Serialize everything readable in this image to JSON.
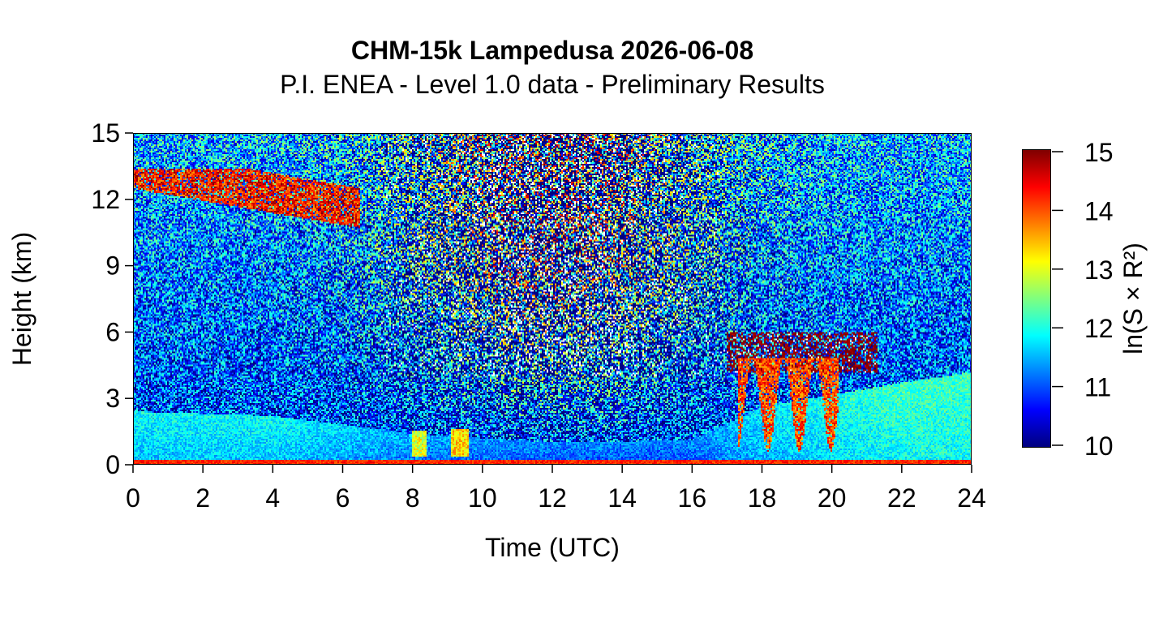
{
  "chart_data": {
    "type": "heatmap",
    "title": "CHM-15k Lampedusa 2026-06-08",
    "subtitle": "P.I. ENEA - Level 1.0 data - Preliminary Results",
    "xlabel": "Time (UTC)",
    "ylabel": "Height (km)",
    "xlim": [
      0,
      24
    ],
    "ylim": [
      0,
      15
    ],
    "x_ticks": [
      0,
      2,
      4,
      6,
      8,
      10,
      12,
      14,
      16,
      18,
      20,
      22,
      24
    ],
    "y_ticks": [
      0,
      3,
      6,
      9,
      12,
      15
    ],
    "colorbar": {
      "label": "ln(S × R²)",
      "range": [
        10,
        15
      ],
      "ticks": [
        10,
        11,
        12,
        13,
        14,
        15
      ],
      "colors": [
        "#00007f",
        "#0000ff",
        "#007fff",
        "#00ffff",
        "#7fff7f",
        "#ffff00",
        "#ff7f00",
        "#ff0000",
        "#7f0000"
      ]
    },
    "features": {
      "surface_layer": {
        "top_km": 0.2,
        "value": 14.2
      },
      "boundary_layer": [
        {
          "time_h": 0,
          "top_km": 2.4,
          "value": 11.9
        },
        {
          "time_h": 4,
          "top_km": 2.2,
          "value": 11.9
        },
        {
          "time_h": 8,
          "top_km": 1.4,
          "value": 11.5
        },
        {
          "time_h": 12,
          "top_km": 1.0,
          "value": 11.3
        },
        {
          "time_h": 16,
          "top_km": 1.1,
          "value": 11.3
        },
        {
          "time_h": 18,
          "top_km": 2.6,
          "value": 11.8
        },
        {
          "time_h": 22,
          "top_km": 3.7,
          "value": 12.2
        },
        {
          "time_h": 24,
          "top_km": 4.2,
          "value": 12.2
        }
      ],
      "cirrus_layer": {
        "time_start_h": 0,
        "time_end_h": 6.5,
        "base_km": 10.6,
        "top_km": 13.4,
        "value": 14.3
      },
      "mid_level_cloud": {
        "time_start_h": 17,
        "time_end_h": 21.3,
        "base_km": 4.2,
        "top_km": 6.0,
        "value": 15.0
      },
      "cloud_fallstreaks": {
        "time_start_h": 17.3,
        "time_end_h": 20.2,
        "base_km": 0.6,
        "top_km": 4.8,
        "value": 14.0
      },
      "low_cloud_columns": [
        {
          "time_start_h": 8.0,
          "time_end_h": 8.4,
          "base_km": 0.4,
          "top_km": 1.5,
          "value": 13.0
        },
        {
          "time_start_h": 9.1,
          "time_end_h": 9.6,
          "base_km": 0.4,
          "top_km": 1.6,
          "value": 13.3
        }
      ]
    }
  }
}
